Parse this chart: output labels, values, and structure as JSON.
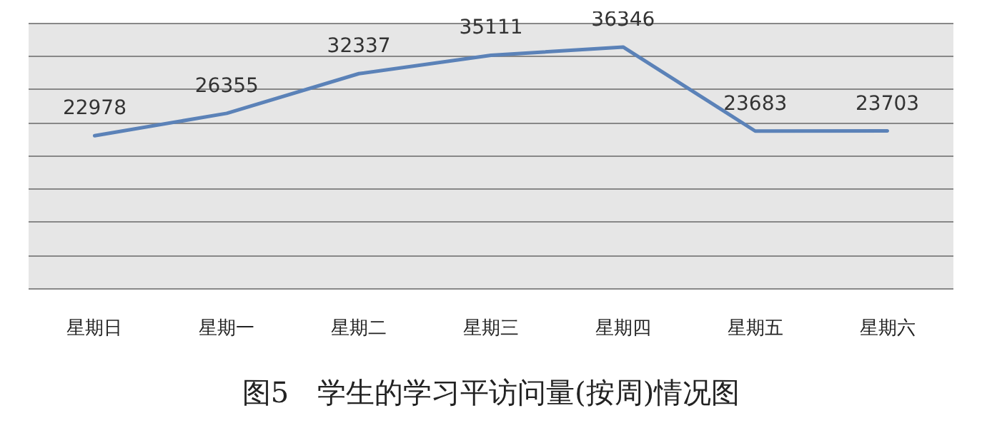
{
  "chart_data": {
    "type": "line",
    "title": "图5　学生的学习平访问量(按周)情况图",
    "categories": [
      "星期日",
      "星期一",
      "星期二",
      "星期三",
      "星期四",
      "星期五",
      "星期六"
    ],
    "series": [
      {
        "color": "#5b82b8",
        "values": [
          22978,
          26355,
          32337,
          35111,
          36346,
          23683,
          23703
        ]
      }
    ],
    "ylim": [
      0,
      40000
    ],
    "yticks": [
      {
        "value": 0,
        "label": null
      },
      {
        "value": 5000,
        "label": null
      },
      {
        "value": 10000,
        "label": null
      },
      {
        "value": 15000,
        "label": null
      },
      {
        "value": 20000,
        "label": null
      },
      {
        "value": 25000,
        "label": null
      },
      {
        "value": 30000,
        "label": null
      },
      {
        "value": 35000,
        "label": null
      },
      {
        "value": 40000,
        "label": null
      }
    ],
    "tick_labels": "x",
    "grid": "y",
    "data_labels": true,
    "marker": "none",
    "line_style": "solid"
  }
}
